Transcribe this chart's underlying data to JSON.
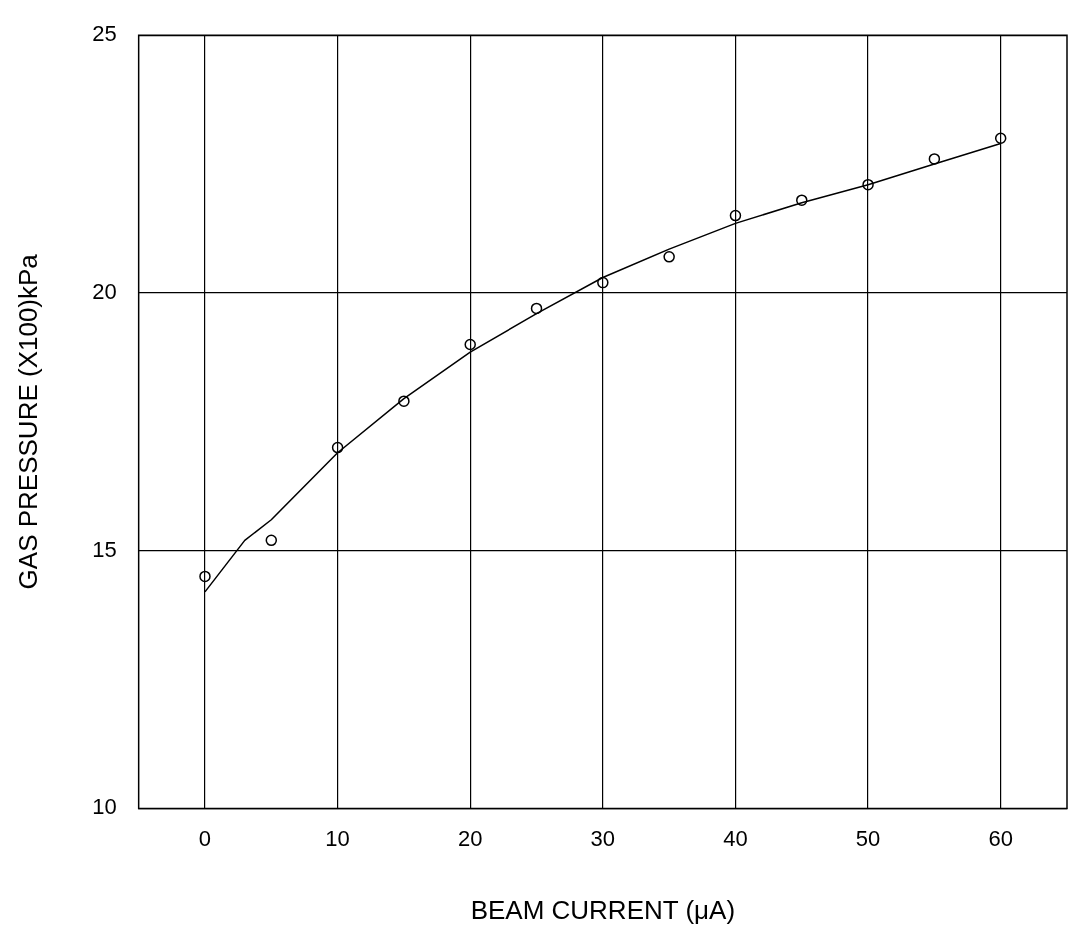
{
  "chart_data": {
    "type": "scatter",
    "xlabel": "BEAM CURRENT (μA)",
    "ylabel": "GAS PRESSURE (X100)kPa",
    "xlim": [
      -5,
      65
    ],
    "xticks": [
      0,
      10,
      20,
      30,
      40,
      50,
      60
    ],
    "ylim": [
      10,
      25
    ],
    "yticks": [
      10,
      15,
      20,
      25
    ],
    "grid": true,
    "series": [
      {
        "color": "#000000",
        "marker": "circle",
        "x": [
          0,
          5,
          10,
          15,
          20,
          25,
          30,
          35,
          40,
          45,
          50,
          55,
          60
        ],
        "values": [
          14.5,
          15.2,
          17.0,
          17.9,
          19.0,
          19.7,
          20.2,
          20.7,
          21.5,
          21.8,
          22.1,
          22.6,
          23.0
        ]
      },
      {
        "type": "line",
        "color": "#000000",
        "marker": "none",
        "line_style": "solid",
        "x": [
          0,
          3,
          5,
          10,
          15,
          20,
          25,
          30,
          35,
          40,
          45,
          50,
          55,
          60
        ],
        "values": [
          14.2,
          15.2,
          15.6,
          16.9,
          17.95,
          18.85,
          19.6,
          20.3,
          20.85,
          21.35,
          21.75,
          22.1,
          22.5,
          22.9
        ]
      }
    ]
  }
}
